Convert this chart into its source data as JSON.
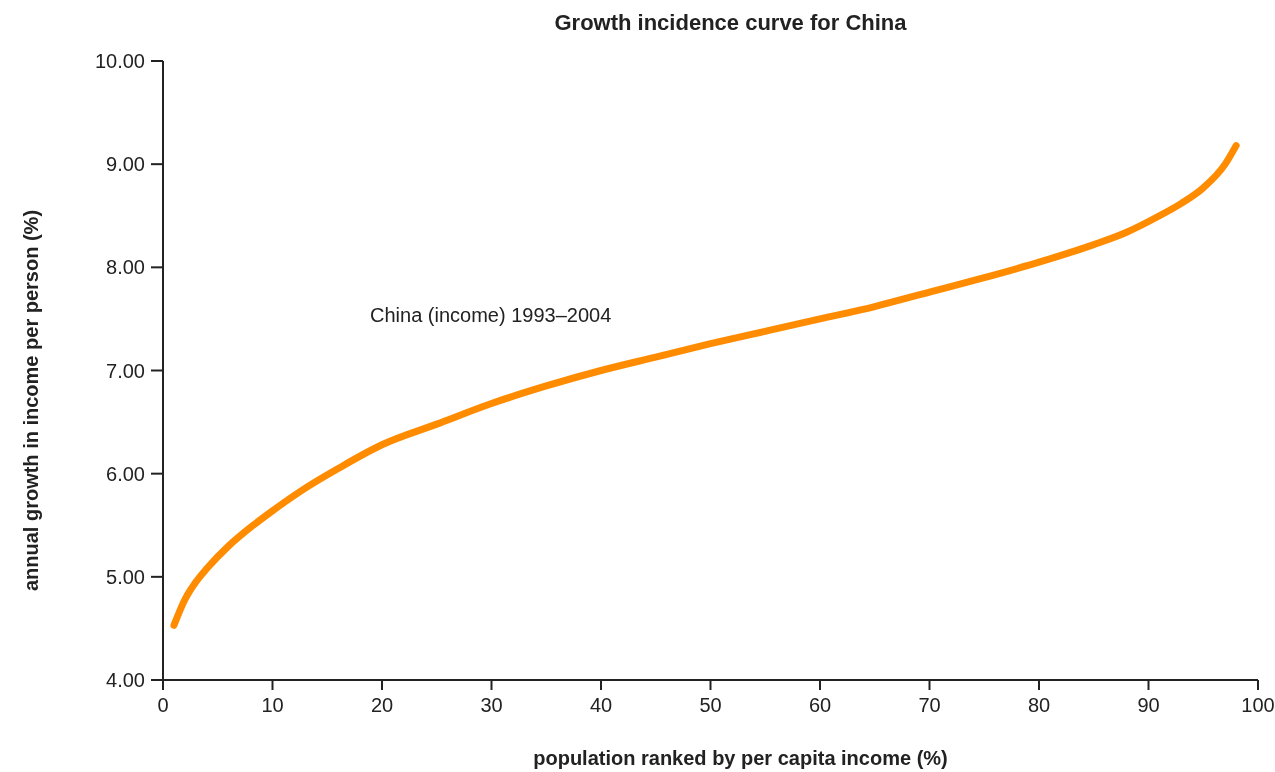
{
  "chart_data": {
    "type": "line",
    "title": "Growth incidence curve for China",
    "xlabel": "population ranked by per capita income (%)",
    "ylabel": "annual growth in income per person (%)",
    "series": [
      {
        "name": "China (income) 1993–2004",
        "color": "#ff8c00",
        "x": [
          1,
          2,
          3,
          4,
          6,
          8,
          10,
          13,
          16,
          20,
          25,
          30,
          35,
          40,
          45,
          50,
          55,
          60,
          65,
          70,
          75,
          80,
          85,
          88,
          91,
          93,
          95,
          97,
          98
        ],
        "values": [
          4.53,
          4.78,
          4.95,
          5.08,
          5.3,
          5.48,
          5.64,
          5.86,
          6.05,
          6.28,
          6.48,
          6.68,
          6.85,
          7.0,
          7.13,
          7.26,
          7.38,
          7.5,
          7.62,
          7.76,
          7.9,
          8.05,
          8.22,
          8.34,
          8.5,
          8.62,
          8.77,
          9.0,
          9.18
        ]
      }
    ],
    "xlim": [
      0,
      100
    ],
    "xticks": [
      0,
      10,
      20,
      30,
      40,
      50,
      60,
      70,
      80,
      90,
      100
    ],
    "ylim": [
      4,
      10
    ],
    "yticks": [
      {
        "value": 4,
        "label": "4.00"
      },
      {
        "value": 5,
        "label": "5.00"
      },
      {
        "value": 6,
        "label": "6.00"
      },
      {
        "value": 7,
        "label": "7.00"
      },
      {
        "value": 8,
        "label": "8.00"
      },
      {
        "value": 9,
        "label": "9.00"
      },
      {
        "value": 10,
        "label": "10.00"
      }
    ],
    "grid": false,
    "marker": "none",
    "line_style": "solid"
  }
}
